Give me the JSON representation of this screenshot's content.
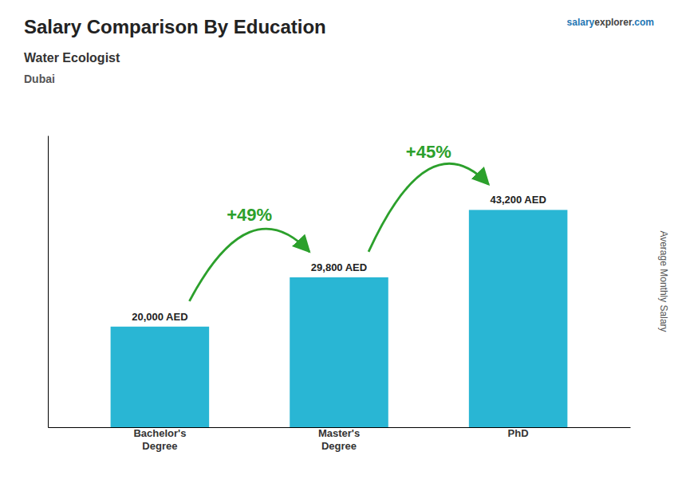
{
  "chart_data": {
    "type": "bar",
    "title": "Salary Comparison By Education",
    "subtitle": [
      "Water Ecologist",
      "Dubai"
    ],
    "watermark": [
      "salary",
      "explorer",
      ".com"
    ],
    "ylabel": "Average Monthly Salary",
    "categories": [
      "Bachelor's\nDegree",
      "Master's\nDegree",
      "PhD"
    ],
    "values": [
      20000,
      29800,
      43200
    ],
    "value_labels": [
      "20,000 AED",
      "29,800 AED",
      "43,200 AED"
    ],
    "data_labels": true,
    "color": "#29b6d4",
    "annotations": [
      "+49%",
      "+45%"
    ],
    "ylim": [
      0,
      58000
    ],
    "tick_labels": "x"
  }
}
